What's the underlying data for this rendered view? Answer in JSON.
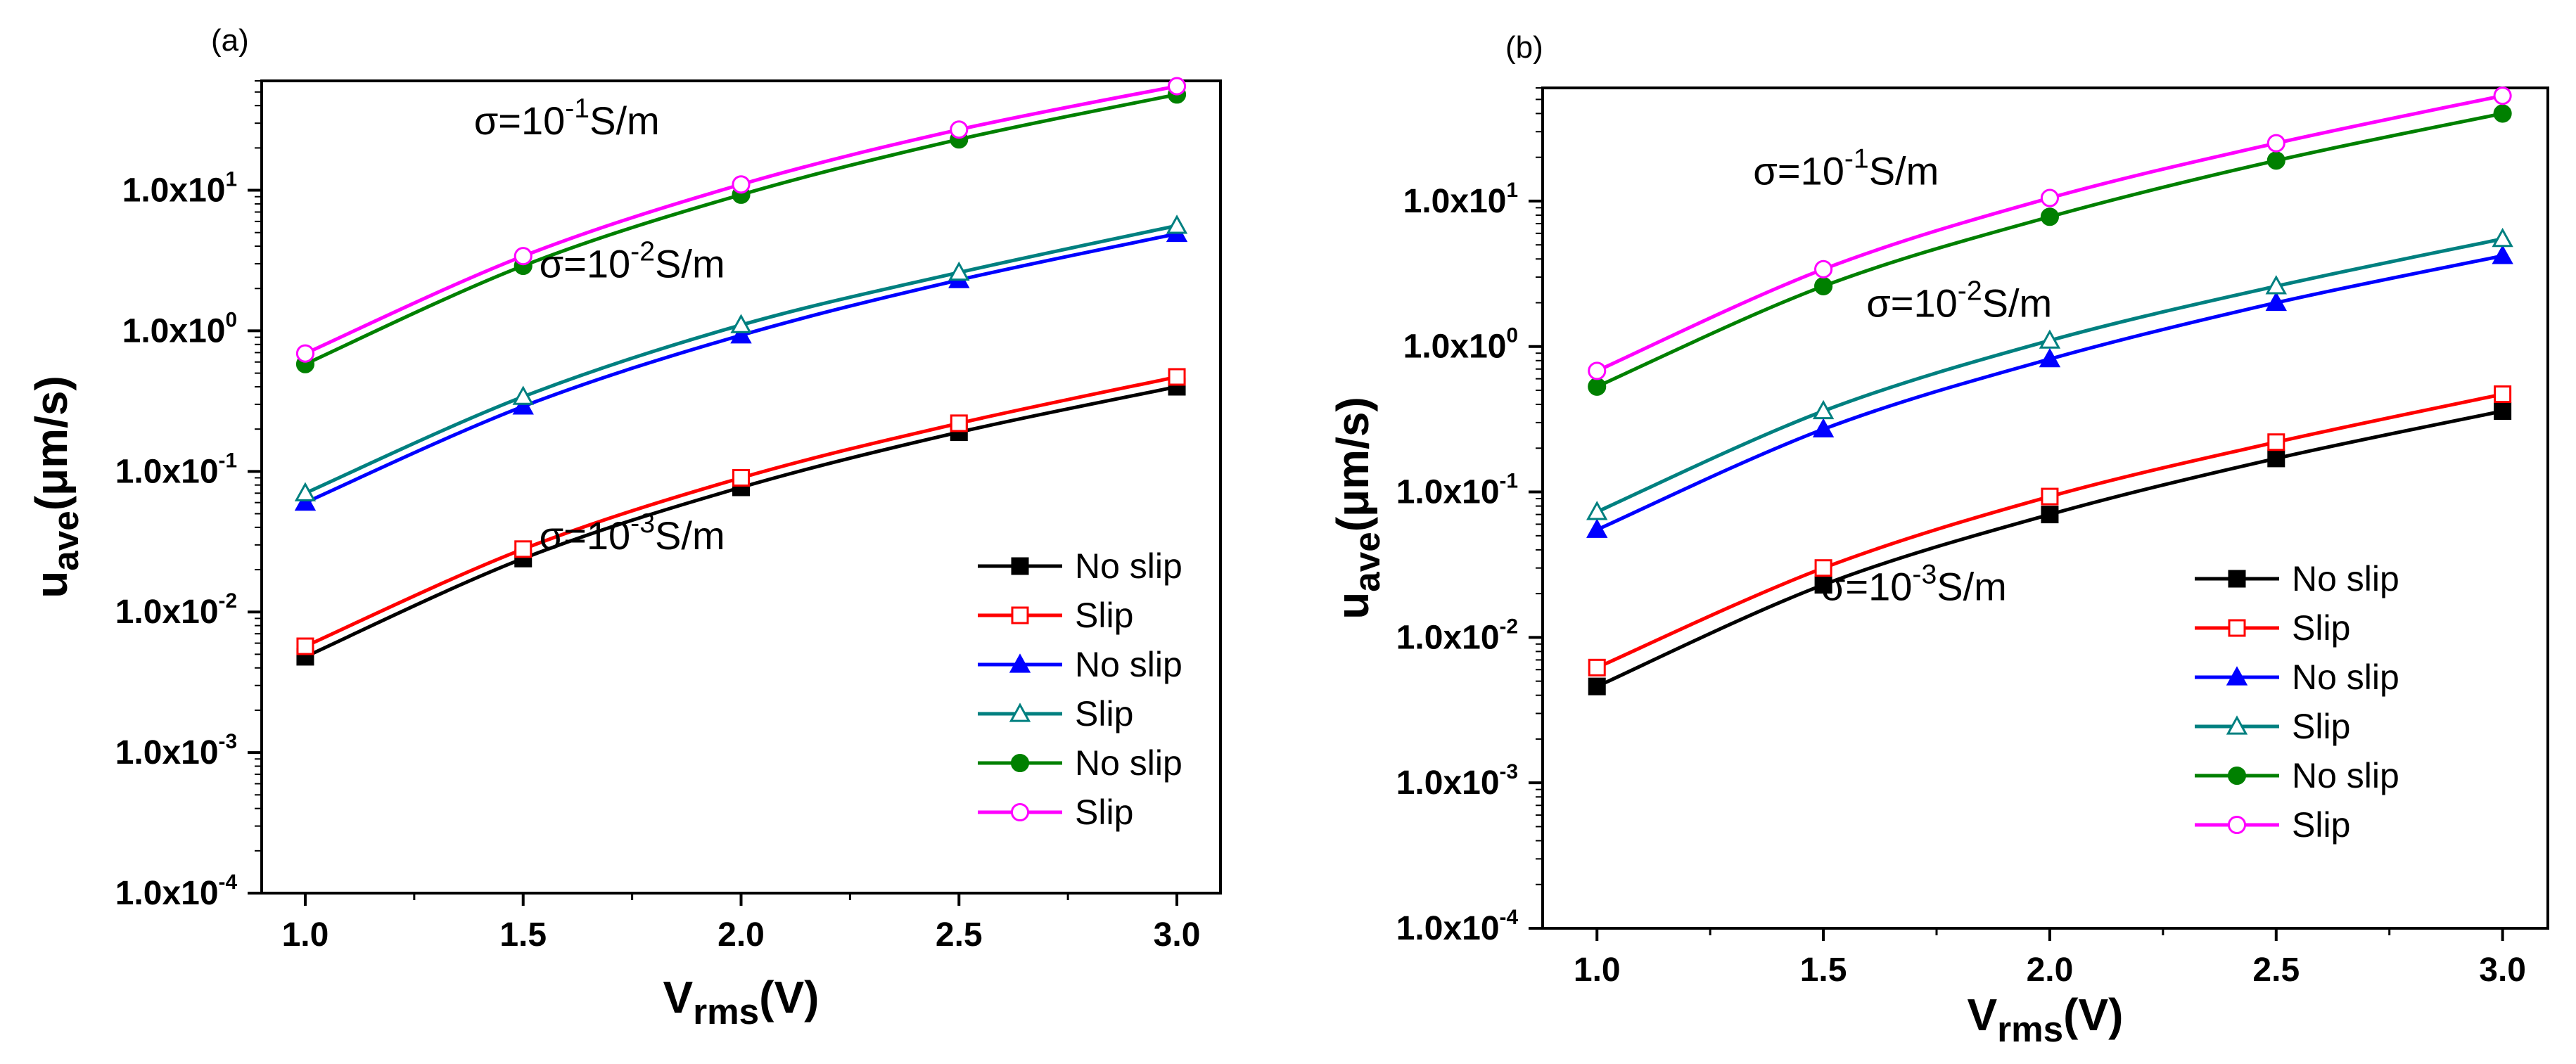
{
  "chart_data": [
    {
      "type": "line",
      "panel_label": "(a)",
      "xlabel": {
        "main": "V",
        "sub": "rms",
        "unit": "(V)"
      },
      "ylabel": {
        "main": "u",
        "sub": "ave",
        "unit": "(μm/s)"
      },
      "x": [
        1.0,
        1.5,
        2.0,
        2.5,
        3.0
      ],
      "xlim": [
        0.9,
        3.1
      ],
      "ylim": [
        0.0001,
        60
      ],
      "yscale": "log",
      "xticks": [
        "1.0",
        "1.5",
        "2.0",
        "2.5",
        "3.0"
      ],
      "yticks": [
        {
          "value": 0.0001,
          "base": "1.0x10",
          "exp": "-4"
        },
        {
          "value": 0.001,
          "base": "1.0x10",
          "exp": "-3"
        },
        {
          "value": 0.01,
          "base": "1.0x10",
          "exp": "-2"
        },
        {
          "value": 0.1,
          "base": "1.0x10",
          "exp": "-1"
        },
        {
          "value": 1,
          "base": "1.0x10",
          "exp": "0"
        },
        {
          "value": 10,
          "base": "1.0x10",
          "exp": "1"
        }
      ],
      "annotations": [
        {
          "prefix": "σ=10",
          "exp": "-1",
          "suffix": "S/m",
          "x": 1.6,
          "y": 25
        },
        {
          "prefix": "σ=10",
          "exp": "-2",
          "suffix": "S/m",
          "x": 1.75,
          "y": 2.4
        },
        {
          "prefix": "σ=10",
          "exp": "-3",
          "suffix": "S/m",
          "x": 1.75,
          "y": 0.028
        }
      ],
      "legend": {
        "position": "bottom-right"
      },
      "series": [
        {
          "name": "No slip",
          "color": "#000000",
          "marker": "square",
          "filled": true,
          "values": [
            0.0048,
            0.024,
            0.077,
            0.19,
            0.4
          ]
        },
        {
          "name": "Slip",
          "color": "#ff0000",
          "marker": "square",
          "filled": false,
          "values": [
            0.0057,
            0.028,
            0.09,
            0.22,
            0.47
          ]
        },
        {
          "name": "No slip",
          "color": "#0000ff",
          "marker": "triangle",
          "filled": true,
          "values": [
            0.06,
            0.29,
            0.93,
            2.3,
            4.9
          ]
        },
        {
          "name": "Slip",
          "color": "#008080",
          "marker": "triangle",
          "filled": false,
          "values": [
            0.07,
            0.34,
            1.1,
            2.6,
            5.6
          ]
        },
        {
          "name": "No slip",
          "color": "#008000",
          "marker": "circle",
          "filled": true,
          "values": [
            0.58,
            2.9,
            9.3,
            23,
            48
          ]
        },
        {
          "name": "Slip",
          "color": "#ff00ff",
          "marker": "circle",
          "filled": false,
          "values": [
            0.69,
            3.4,
            11,
            27,
            55
          ]
        }
      ]
    },
    {
      "type": "line",
      "panel_label": "(b)",
      "xlabel": {
        "main": "V",
        "sub": "rms",
        "unit": "(V)"
      },
      "ylabel": {
        "main": "u",
        "sub": "ave",
        "unit": "(μm/s)"
      },
      "x": [
        1.0,
        1.5,
        2.0,
        2.5,
        3.0
      ],
      "xlim": [
        0.88,
        3.1
      ],
      "ylim": [
        0.0001,
        60
      ],
      "yscale": "log",
      "xticks": [
        "1.0",
        "1.5",
        "2.0",
        "2.5",
        "3.0"
      ],
      "yticks": [
        {
          "value": 0.0001,
          "base": "1.0x10",
          "exp": "-4"
        },
        {
          "value": 0.001,
          "base": "1.0x10",
          "exp": "-3"
        },
        {
          "value": 0.01,
          "base": "1.0x10",
          "exp": "-2"
        },
        {
          "value": 0.1,
          "base": "1.0x10",
          "exp": "-1"
        },
        {
          "value": 1,
          "base": "1.0x10",
          "exp": "0"
        },
        {
          "value": 10,
          "base": "1.0x10",
          "exp": "1"
        }
      ],
      "annotations": [
        {
          "prefix": "σ=10",
          "exp": "-1",
          "suffix": "S/m",
          "x": 1.55,
          "y": 13
        },
        {
          "prefix": "σ=10",
          "exp": "-2",
          "suffix": "S/m",
          "x": 1.8,
          "y": 1.6
        },
        {
          "prefix": "σ=10",
          "exp": "-3",
          "suffix": "S/m",
          "x": 1.7,
          "y": 0.018
        }
      ],
      "legend": {
        "position": "bottom-right"
      },
      "series": [
        {
          "name": "No slip",
          "color": "#000000",
          "marker": "square",
          "filled": true,
          "values": [
            0.0046,
            0.023,
            0.07,
            0.17,
            0.36
          ]
        },
        {
          "name": "Slip",
          "color": "#ff0000",
          "marker": "square",
          "filled": false,
          "values": [
            0.0062,
            0.03,
            0.093,
            0.22,
            0.47
          ]
        },
        {
          "name": "No slip",
          "color": "#0000ff",
          "marker": "triangle",
          "filled": true,
          "values": [
            0.055,
            0.27,
            0.82,
            2.0,
            4.2
          ]
        },
        {
          "name": "Slip",
          "color": "#008080",
          "marker": "triangle",
          "filled": false,
          "values": [
            0.073,
            0.36,
            1.1,
            2.6,
            5.5
          ]
        },
        {
          "name": "No slip",
          "color": "#008000",
          "marker": "circle",
          "filled": true,
          "values": [
            0.53,
            2.6,
            7.8,
            19,
            40
          ]
        },
        {
          "name": "Slip",
          "color": "#ff00ff",
          "marker": "circle",
          "filled": false,
          "values": [
            0.68,
            3.4,
            10.5,
            25,
            53
          ]
        }
      ]
    }
  ]
}
